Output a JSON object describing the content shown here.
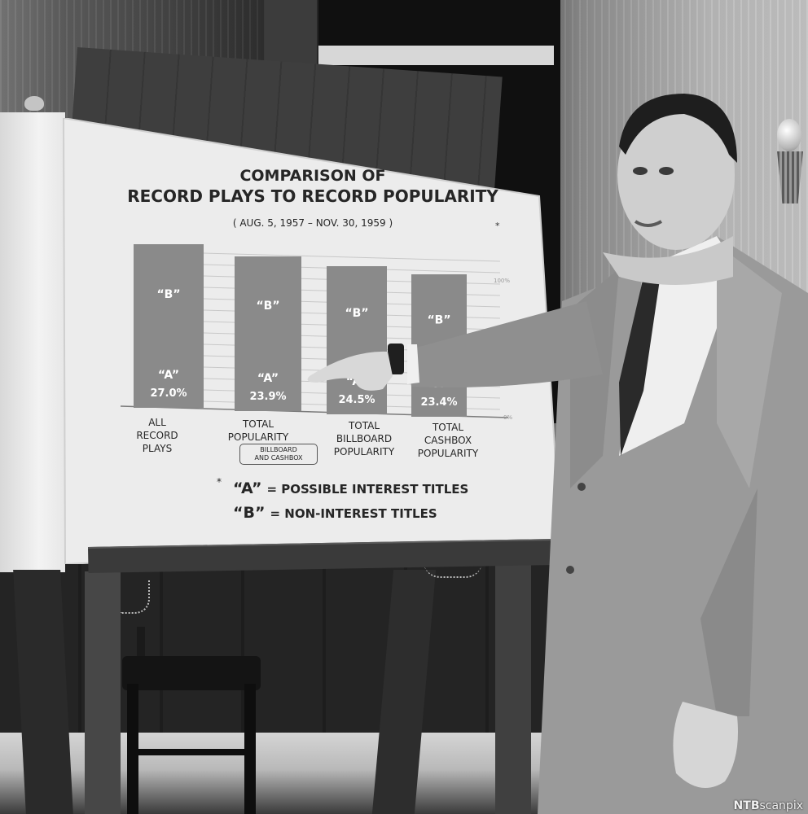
{
  "board": {
    "title_line1": "COMPARISON OF",
    "title_line2": "RECORD PLAYS TO RECORD POPULARITY",
    "date_range": "( AUG. 5, 1957 – NOV. 30, 1959 )",
    "title_note": "*",
    "legend": {
      "asterisk": "*",
      "a_key": "“A”",
      "a_text": "= POSSIBLE INTEREST TITLES",
      "b_key": "“B”",
      "b_text": "= NON-INTEREST TITLES"
    }
  },
  "chart_data": {
    "type": "bar",
    "stacked": true,
    "categories": [
      "ALL\nRECORD\nPLAYS",
      "TOTAL\nPOPULARITY",
      "TOTAL\nBILLBOARD\nPOPULARITY",
      "TOTAL\nCASHBOX\nPOPULARITY"
    ],
    "category_notes": [
      "",
      "BILLBOARD\nAND CASHBOX",
      "",
      ""
    ],
    "series": [
      {
        "name": "“A”",
        "values": [
          27.0,
          23.9,
          24.5,
          23.4
        ]
      },
      {
        "name": "“B”",
        "values": [
          73.0,
          76.1,
          75.5,
          76.6
        ]
      }
    ],
    "data_labels": [
      "27.0%",
      "23.9%",
      "24.5%",
      "23.4%"
    ],
    "segment_labels": {
      "a": "“A”",
      "b": "“B”"
    },
    "axis_end_labels": [
      "100%",
      "0%"
    ],
    "ylim": [
      0,
      100
    ],
    "grid": true,
    "colors": {
      "bar": "#8a8a8a",
      "board": "#ececec",
      "ink": "#262626"
    }
  },
  "photo": {
    "subject": "man in light suit pointing at chart",
    "watermark_brand": "NTB",
    "watermark_suffix": "scanpix"
  }
}
